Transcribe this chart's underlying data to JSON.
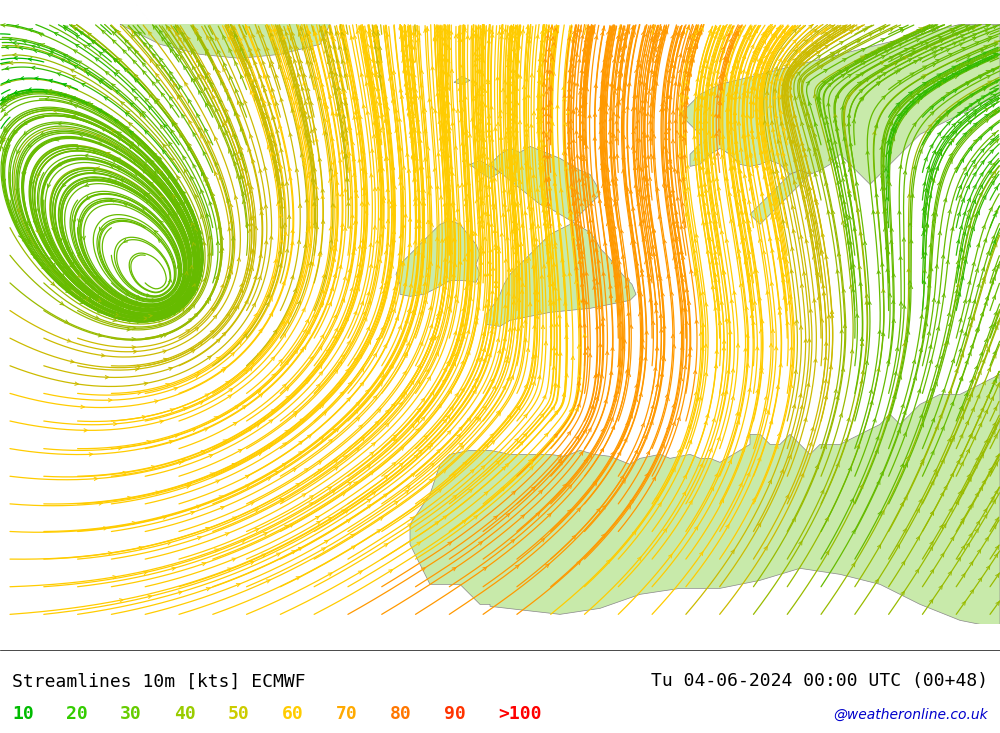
{
  "title_left": "Streamlines 10m [kts] ECMWF",
  "title_right": "Tu 04-06-2024 00:00 UTC (00+48)",
  "credit": "@weatheronline.co.uk",
  "legend_values": [
    "10",
    "20",
    "30",
    "40",
    "50",
    "60",
    "70",
    "80",
    "90",
    ">100"
  ],
  "legend_colors": [
    "#00bb00",
    "#33bb00",
    "#66bb00",
    "#99bb00",
    "#ccbb00",
    "#ffcc00",
    "#ff9900",
    "#ff6600",
    "#ff3300",
    "#ff0000"
  ],
  "ocean_color": "#e8e8e8",
  "land_color": "#c8eaaa",
  "coast_color": "#888888",
  "title_fontsize": 13,
  "legend_fontsize": 13,
  "credit_fontsize": 10,
  "figsize": [
    10.0,
    7.33
  ],
  "dpi": 100,
  "lon_min": -30,
  "lon_max": 20,
  "lat_min": 35,
  "lat_max": 65,
  "speed_bounds": [
    0,
    10,
    20,
    30,
    40,
    50,
    60,
    70,
    80,
    90,
    300
  ],
  "streamline_lw": 0.9,
  "arrow_size": 6
}
